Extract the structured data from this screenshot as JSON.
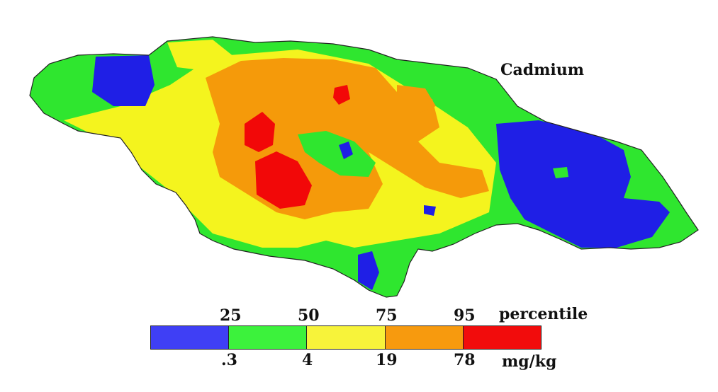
{
  "title": "Cadmium",
  "legend": {
    "percentile_label": "percentile",
    "unit_label": "mg/kg",
    "percentile_ticks": [
      "25",
      "50",
      "75",
      "95"
    ],
    "value_ticks": [
      ".3",
      "4",
      "19",
      "78"
    ],
    "classes": [
      {
        "color": "#3f3ff5"
      },
      {
        "color": "#3cf23c"
      },
      {
        "color": "#f7f33a"
      },
      {
        "color": "#f79a0e"
      },
      {
        "color": "#f20c0c"
      }
    ]
  },
  "colors": {
    "blue": "#1f1fe6",
    "green": "#2fe62f",
    "yellow": "#f4f41e",
    "orange": "#f59a0a",
    "red": "#f20808",
    "coast": "#222222"
  }
}
